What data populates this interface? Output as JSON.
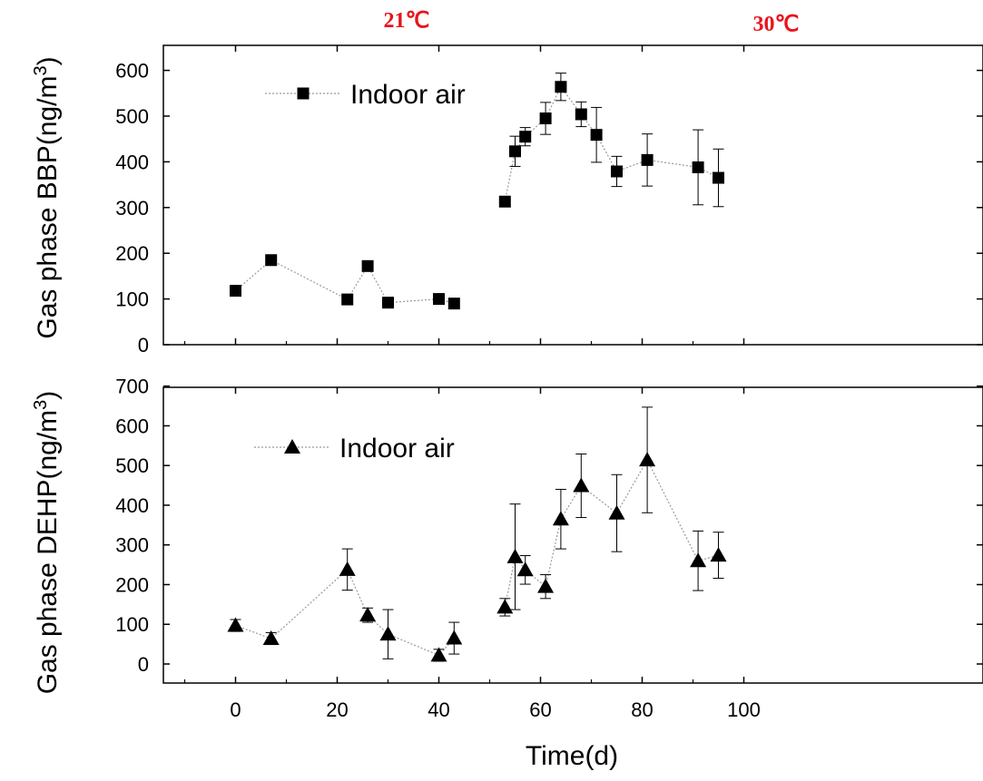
{
  "figure": {
    "temperature_labels": [
      "21℃",
      "30℃"
    ],
    "temperature_color": "#e8141c",
    "xlabel": "Time(d)",
    "x_ticks": [
      0,
      20,
      40,
      60,
      80,
      100
    ]
  },
  "chart_data": [
    {
      "type": "scatter",
      "panel": "top",
      "ylabel": "Gas phase  BBP(ng/m³)",
      "xlim": [
        -10,
        110
      ],
      "ylim": [
        0,
        620
      ],
      "y_ticks": [
        0,
        100,
        200,
        300,
        400,
        500,
        600
      ],
      "legend": "top-left",
      "series": [
        {
          "name": "Indoor air",
          "marker": "square",
          "color": "#000000",
          "line_color": "#9a9a9a",
          "segments": [
            [
              {
                "x": 0,
                "y": 118,
                "err": 0
              },
              {
                "x": 7,
                "y": 185,
                "err": 0
              },
              {
                "x": 22,
                "y": 99,
                "err": 0
              },
              {
                "x": 26,
                "y": 172,
                "err": 10
              },
              {
                "x": 30,
                "y": 92,
                "err": 0
              },
              {
                "x": 40,
                "y": 100,
                "err": 0
              },
              {
                "x": 43,
                "y": 90,
                "err": 0
              }
            ],
            [
              {
                "x": 53,
                "y": 313,
                "err": 0
              },
              {
                "x": 55,
                "y": 423,
                "err": 33
              },
              {
                "x": 57,
                "y": 455,
                "err": 20
              },
              {
                "x": 61,
                "y": 495,
                "err": 35
              },
              {
                "x": 64,
                "y": 564,
                "err": 30
              },
              {
                "x": 68,
                "y": 504,
                "err": 27
              },
              {
                "x": 71,
                "y": 459,
                "err": 60
              },
              {
                "x": 75,
                "y": 379,
                "err": 33
              },
              {
                "x": 81,
                "y": 404,
                "err": 57
              },
              {
                "x": 91,
                "y": 388,
                "err": 82
              },
              {
                "x": 95,
                "y": 365,
                "err": 63
              }
            ]
          ]
        }
      ]
    },
    {
      "type": "scatter",
      "panel": "bottom",
      "ylabel": "Gas phase  DEHP(ng/m³)",
      "xlabel": "Time(d)",
      "xlim": [
        -10,
        110
      ],
      "ylim": [
        -20,
        700
      ],
      "y_ticks": [
        0,
        100,
        200,
        300,
        400,
        500,
        600,
        700
      ],
      "legend": "top-left",
      "series": [
        {
          "name": "Indoor air",
          "marker": "triangle",
          "color": "#000000",
          "line_color": "#9a9a9a",
          "segments": [
            [
              {
                "x": 0,
                "y": 97,
                "err": 15
              },
              {
                "x": 7,
                "y": 64,
                "err": 15
              },
              {
                "x": 22,
                "y": 238,
                "err": 52
              },
              {
                "x": 26,
                "y": 123,
                "err": 18
              },
              {
                "x": 30,
                "y": 75,
                "err": 62
              },
              {
                "x": 40,
                "y": 22,
                "err": 15
              },
              {
                "x": 43,
                "y": 65,
                "err": 40
              }
            ],
            [
              {
                "x": 53,
                "y": 143,
                "err": 22
              },
              {
                "x": 55,
                "y": 270,
                "err": 133
              },
              {
                "x": 57,
                "y": 237,
                "err": 36
              },
              {
                "x": 61,
                "y": 195,
                "err": 30
              },
              {
                "x": 64,
                "y": 365,
                "err": 75
              },
              {
                "x": 68,
                "y": 449,
                "err": 80
              },
              {
                "x": 75,
                "y": 380,
                "err": 97
              },
              {
                "x": 81,
                "y": 514,
                "err": 133
              },
              {
                "x": 91,
                "y": 260,
                "err": 75
              },
              {
                "x": 95,
                "y": 274,
                "err": 58
              }
            ]
          ]
        }
      ]
    }
  ]
}
